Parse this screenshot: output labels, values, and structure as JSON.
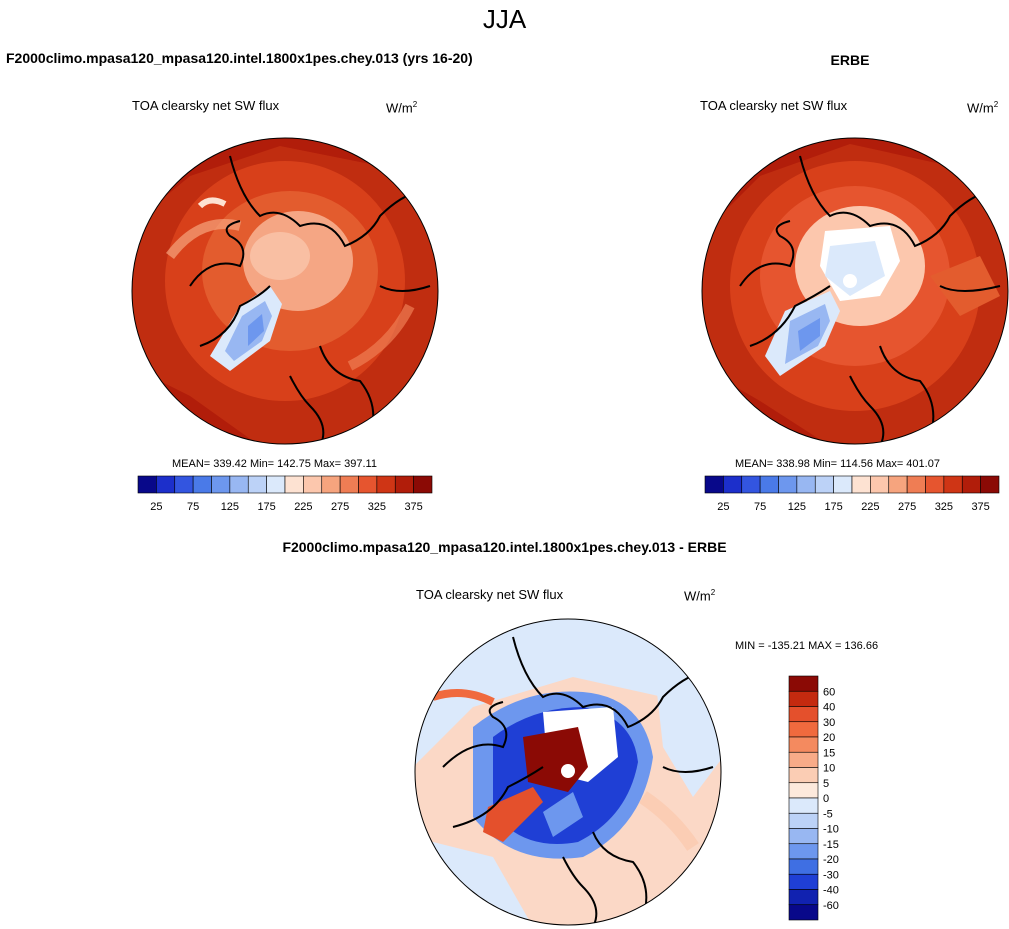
{
  "page_title": "JJA",
  "chart_data": [
    {
      "type": "heatmap",
      "projection": "north polar stereographic",
      "case_title": "F2000climo.mpasa120_mpasa120.intel.1800x1pes.chey.013 (yrs 16-20)",
      "variable": "TOA clearsky net SW flux",
      "units_base": "W/m",
      "units_exp": "2",
      "stats": "MEAN= 339.42  Min= 142.75  Max= 397.11",
      "mean": 339.42,
      "min": 142.75,
      "max": 397.11,
      "colorbar": {
        "levels": [
          25,
          50,
          75,
          100,
          125,
          150,
          175,
          200,
          225,
          250,
          275,
          300,
          325,
          350,
          375
        ],
        "tick_labels": [
          "25",
          "75",
          "125",
          "175",
          "225",
          "275",
          "325",
          "375"
        ],
        "colors": [
          "#08088a",
          "#1c2fcb",
          "#3355e0",
          "#4a7ae8",
          "#6d97ee",
          "#98b7f2",
          "#bcd2f7",
          "#dbe9fb",
          "#fde2d2",
          "#fcc7ad",
          "#f6a47e",
          "#ef7d54",
          "#e6552f",
          "#cf3515",
          "#b11d0a",
          "#8b0a05"
        ]
      }
    },
    {
      "type": "heatmap",
      "projection": "north polar stereographic",
      "case_title": "ERBE",
      "variable": "TOA clearsky net SW flux",
      "units_base": "W/m",
      "units_exp": "2",
      "stats": "MEAN= 338.98  Min= 114.56  Max= 401.07",
      "mean": 338.98,
      "min": 114.56,
      "max": 401.07,
      "colorbar": {
        "levels": [
          25,
          50,
          75,
          100,
          125,
          150,
          175,
          200,
          225,
          250,
          275,
          300,
          325,
          350,
          375
        ],
        "tick_labels": [
          "25",
          "75",
          "125",
          "175",
          "225",
          "275",
          "325",
          "375"
        ],
        "colors": [
          "#08088a",
          "#1c2fcb",
          "#3355e0",
          "#4a7ae8",
          "#6d97ee",
          "#98b7f2",
          "#bcd2f7",
          "#dbe9fb",
          "#fde2d2",
          "#fcc7ad",
          "#f6a47e",
          "#ef7d54",
          "#e6552f",
          "#cf3515",
          "#b11d0a",
          "#8b0a05"
        ]
      }
    },
    {
      "type": "heatmap",
      "projection": "north polar stereographic",
      "case_title": "F2000climo.mpasa120_mpasa120.intel.1800x1pes.chey.013 - ERBE",
      "variable": "TOA clearsky net SW flux",
      "units_base": "W/m",
      "units_exp": "2",
      "stats": "MIN = -135.21 MAX = 136.66",
      "min": -135.21,
      "max": 136.66,
      "colorbar": {
        "levels": [
          60,
          40,
          30,
          20,
          15,
          10,
          5,
          0,
          -5,
          -10,
          -15,
          -20,
          -30,
          -40,
          -60
        ],
        "tick_labels": [
          "60",
          "40",
          "30",
          "20",
          "15",
          "10",
          "5",
          "0",
          "-5",
          "-10",
          "-15",
          "-20",
          "-30",
          "-40",
          "-60"
        ],
        "colors": [
          "#8b0a05",
          "#c42a0f",
          "#e4502c",
          "#f06a3e",
          "#f48a5f",
          "#f8ab88",
          "#fbcdb4",
          "#fde9dc",
          "#dbe9fb",
          "#bcd2f7",
          "#98b7f2",
          "#6d97ee",
          "#3f6fe3",
          "#1f3fd5",
          "#1122b0",
          "#08088a"
        ]
      }
    }
  ]
}
